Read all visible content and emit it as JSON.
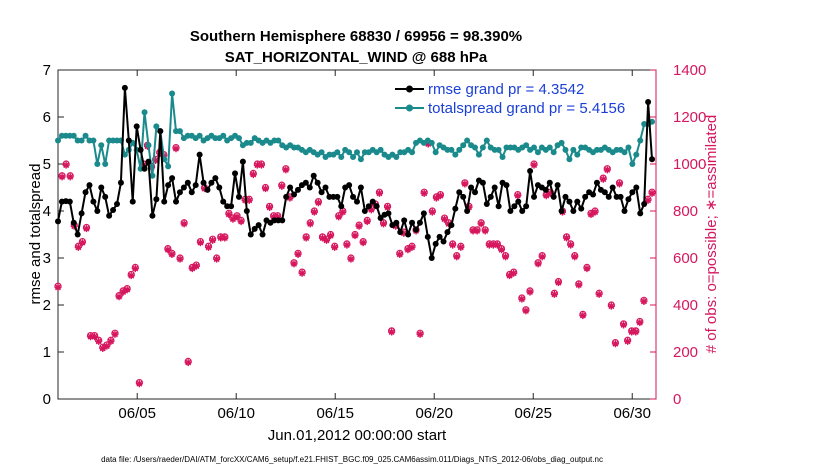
{
  "chart_data": {
    "type": "line",
    "title_line1": "Southern Hemisphere 68830 / 69956 = 98.390%",
    "title_line2": "SAT_HORIZONTAL_WIND @ 688 hPa",
    "xlabel": "Jun.01,2012 00:00:00 start",
    "ylabel_left": "rmse and totalspread",
    "ylabel_right": "# of obs: o=possible; ∗=assimilated",
    "xlim": [
      1,
      31.2
    ],
    "ylim_left": [
      0,
      7
    ],
    "ylim_right": [
      0,
      1400
    ],
    "x_tick_values": [
      5,
      10,
      15,
      20,
      25,
      30
    ],
    "x_tick_labels": [
      "06/05",
      "06/10",
      "06/15",
      "06/20",
      "06/25",
      "06/30"
    ],
    "y_ticks_left": [
      "0",
      "1",
      "2",
      "3",
      "4",
      "5",
      "6",
      "7"
    ],
    "y_ticks_right": [
      "0",
      "200",
      "400",
      "600",
      "800",
      "1000",
      "1200",
      "1400"
    ],
    "legend": [
      {
        "name": "rmse grand pr = 4.3542",
        "color": "#000000"
      },
      {
        "name": "totalspread grand pr = 5.4156",
        "color": "#1a8a8c"
      }
    ],
    "colors": {
      "rmse": "#000000",
      "spread": "#1a8a8c",
      "obs": "#d6175e"
    },
    "series": [
      {
        "name": "rmse",
        "values": [
          3.78,
          4.2,
          4.21,
          4.2,
          3.75,
          3.5,
          3.95,
          4.4,
          4.55,
          4.2,
          4.0,
          4.5,
          4.3,
          3.9,
          4.02,
          4.15,
          4.6,
          6.62,
          5.5,
          4.2,
          5.8,
          5.3,
          4.9,
          5.05,
          3.9,
          4.25,
          5.7,
          4.2,
          4.55,
          4.7,
          4.2,
          4.4,
          4.5,
          4.6,
          4.4,
          4.55,
          5.2,
          4.6,
          4.45,
          4.6,
          4.7,
          4.5,
          4.2,
          4.1,
          4.1,
          4.8,
          4.3,
          5.05,
          4.0,
          3.5,
          3.62,
          3.7,
          3.5,
          3.8,
          3.75,
          3.8,
          3.8,
          3.8,
          4.3,
          4.5,
          4.35,
          4.45,
          4.55,
          4.6,
          4.5,
          4.75,
          4.6,
          4.4,
          4.5,
          4.3,
          4.3,
          4.3,
          4.1,
          4.5,
          4.55,
          4.3,
          4.2,
          4.5,
          4.0,
          4.1,
          4.2,
          4.1,
          3.85,
          3.92,
          3.95,
          3.7,
          3.75,
          3.55,
          3.8,
          3.5,
          3.75,
          3.6,
          3.75,
          3.95,
          3.45,
          3.0,
          3.3,
          3.45,
          3.35,
          3.55,
          3.7,
          4.05,
          4.4,
          4.3,
          4.0,
          4.5,
          4.4,
          4.65,
          4.6,
          4.15,
          4.3,
          4.5,
          4.1,
          4.6,
          4.55,
          4.0,
          4.1,
          4.2,
          4.0,
          4.1,
          4.85,
          4.3,
          4.55,
          4.5,
          4.45,
          4.6,
          4.3,
          4.55,
          4.0,
          4.3,
          4.2,
          4.0,
          4.2,
          4.05,
          4.3,
          4.4,
          4.35,
          4.6,
          4.45,
          4.4,
          4.3,
          4.5,
          4.3,
          4.3,
          4.0,
          4.25,
          4.4,
          4.5,
          3.95,
          4.15,
          6.32,
          5.1
        ]
      },
      {
        "name": "totalspread",
        "values": [
          5.5,
          5.6,
          5.6,
          5.6,
          5.6,
          5.5,
          5.5,
          5.6,
          5.5,
          5.5,
          5.0,
          5.4,
          5.0,
          5.5,
          5.5,
          5.5,
          5.5,
          5.2,
          5.3,
          5.45,
          5.3,
          4.9,
          6.1,
          5.4,
          4.75,
          5.8,
          5.7,
          5.1,
          4.95,
          6.5,
          5.7,
          5.7,
          5.55,
          5.6,
          5.6,
          5.55,
          5.6,
          5.5,
          5.55,
          5.6,
          5.55,
          5.55,
          5.6,
          5.5,
          5.55,
          5.6,
          5.55,
          5.4,
          5.45,
          5.45,
          5.55,
          5.5,
          5.45,
          5.5,
          5.45,
          5.5,
          5.5,
          5.4,
          5.35,
          5.4,
          5.35,
          5.35,
          5.3,
          5.25,
          5.3,
          5.25,
          5.2,
          5.25,
          5.15,
          5.2,
          5.2,
          5.25,
          5.15,
          5.3,
          5.25,
          5.15,
          5.25,
          5.1,
          5.25,
          5.25,
          5.3,
          5.25,
          5.3,
          5.2,
          5.15,
          5.2,
          5.15,
          5.25,
          5.25,
          5.3,
          5.25,
          5.45,
          5.5,
          5.45,
          5.5,
          5.45,
          5.25,
          5.4,
          5.35,
          5.3,
          5.3,
          5.2,
          5.3,
          5.4,
          5.5,
          5.4,
          5.35,
          5.2,
          5.35,
          5.5,
          5.35,
          5.3,
          5.3,
          5.15,
          5.35,
          5.35,
          5.35,
          5.3,
          5.35,
          5.4,
          5.3,
          5.35,
          5.25,
          5.35,
          5.3,
          5.35,
          5.25,
          5.4,
          5.45,
          5.3,
          5.1,
          5.3,
          5.2,
          5.35,
          5.35,
          5.3,
          5.25,
          5.3,
          5.3,
          5.35,
          5.3,
          5.25,
          5.3,
          5.3,
          5.25,
          5.35,
          5.0,
          5.2,
          5.5,
          5.85,
          5.85,
          5.9
        ]
      },
      {
        "name": "obs_possible",
        "values": [
          480,
          950,
          1000,
          950,
          740,
          650,
          670,
          730,
          270,
          270,
          250,
          220,
          230,
          250,
          280,
          440,
          460,
          470,
          530,
          560,
          70,
          1000,
          1080,
          990,
          1020,
          1050,
          1040,
          640,
          620,
          1070,
          600,
          750,
          160,
          560,
          570,
          670,
          900,
          650,
          680,
          600,
          690,
          690,
          790,
          770,
          780,
          760,
          850,
          850,
          960,
          1000,
          1000,
          900,
          820,
          780,
          780,
          910,
          980,
          860,
          580,
          620,
          540,
          690,
          750,
          800,
          840,
          690,
          680,
          700,
          650,
          780,
          800,
          660,
          600,
          700,
          740,
          670,
          760,
          810,
          830,
          880,
          750,
          820,
          290,
          740,
          620,
          710,
          640,
          650,
          720,
          280,
          880,
          1090,
          800,
          860,
          870,
          770,
          750,
          660,
          610,
          650,
          920,
          820,
          720,
          720,
          750,
          720,
          660,
          660,
          660,
          640,
          610,
          530,
          540,
          870,
          430,
          380,
          460,
          1000,
          580,
          610,
          870,
          880,
          450,
          500,
          800,
          690,
          660,
          610,
          490,
          360,
          560,
          790,
          800,
          450,
          940,
          980,
          400,
          240,
          920,
          320,
          250,
          290,
          290,
          330,
          420,
          850,
          880
        ]
      },
      {
        "name": "obs_assimilated",
        "values": [
          475,
          945,
          995,
          945,
          735,
          645,
          665,
          725,
          265,
          265,
          245,
          215,
          225,
          245,
          275,
          435,
          455,
          465,
          525,
          555,
          65,
          995,
          1075,
          985,
          1015,
          1045,
          1035,
          635,
          615,
          1065,
          595,
          745,
          155,
          555,
          565,
          665,
          895,
          645,
          675,
          595,
          685,
          685,
          785,
          765,
          775,
          755,
          845,
          845,
          955,
          995,
          995,
          895,
          815,
          775,
          775,
          905,
          975,
          855,
          575,
          615,
          535,
          685,
          745,
          795,
          835,
          685,
          675,
          695,
          645,
          775,
          795,
          655,
          595,
          695,
          735,
          665,
          755,
          805,
          825,
          875,
          745,
          815,
          285,
          735,
          615,
          705,
          635,
          645,
          715,
          275,
          875,
          1085,
          795,
          855,
          865,
          765,
          745,
          655,
          605,
          645,
          915,
          815,
          715,
          715,
          745,
          715,
          655,
          655,
          655,
          635,
          605,
          525,
          535,
          865,
          425,
          375,
          455,
          995,
          575,
          605,
          865,
          875,
          445,
          495,
          795,
          685,
          655,
          605,
          485,
          355,
          555,
          785,
          795,
          445,
          935,
          975,
          395,
          235,
          915,
          315,
          245,
          285,
          285,
          325,
          415,
          845,
          875
        ]
      }
    ]
  },
  "footer": "data file: /Users/raeder/DAI/ATM_forcXX/CAM6_setup/f.e21.FHIST_BGC.f09_025.CAM6assim.011/Diags_NTrS_2012-06/obs_diag_output.nc"
}
